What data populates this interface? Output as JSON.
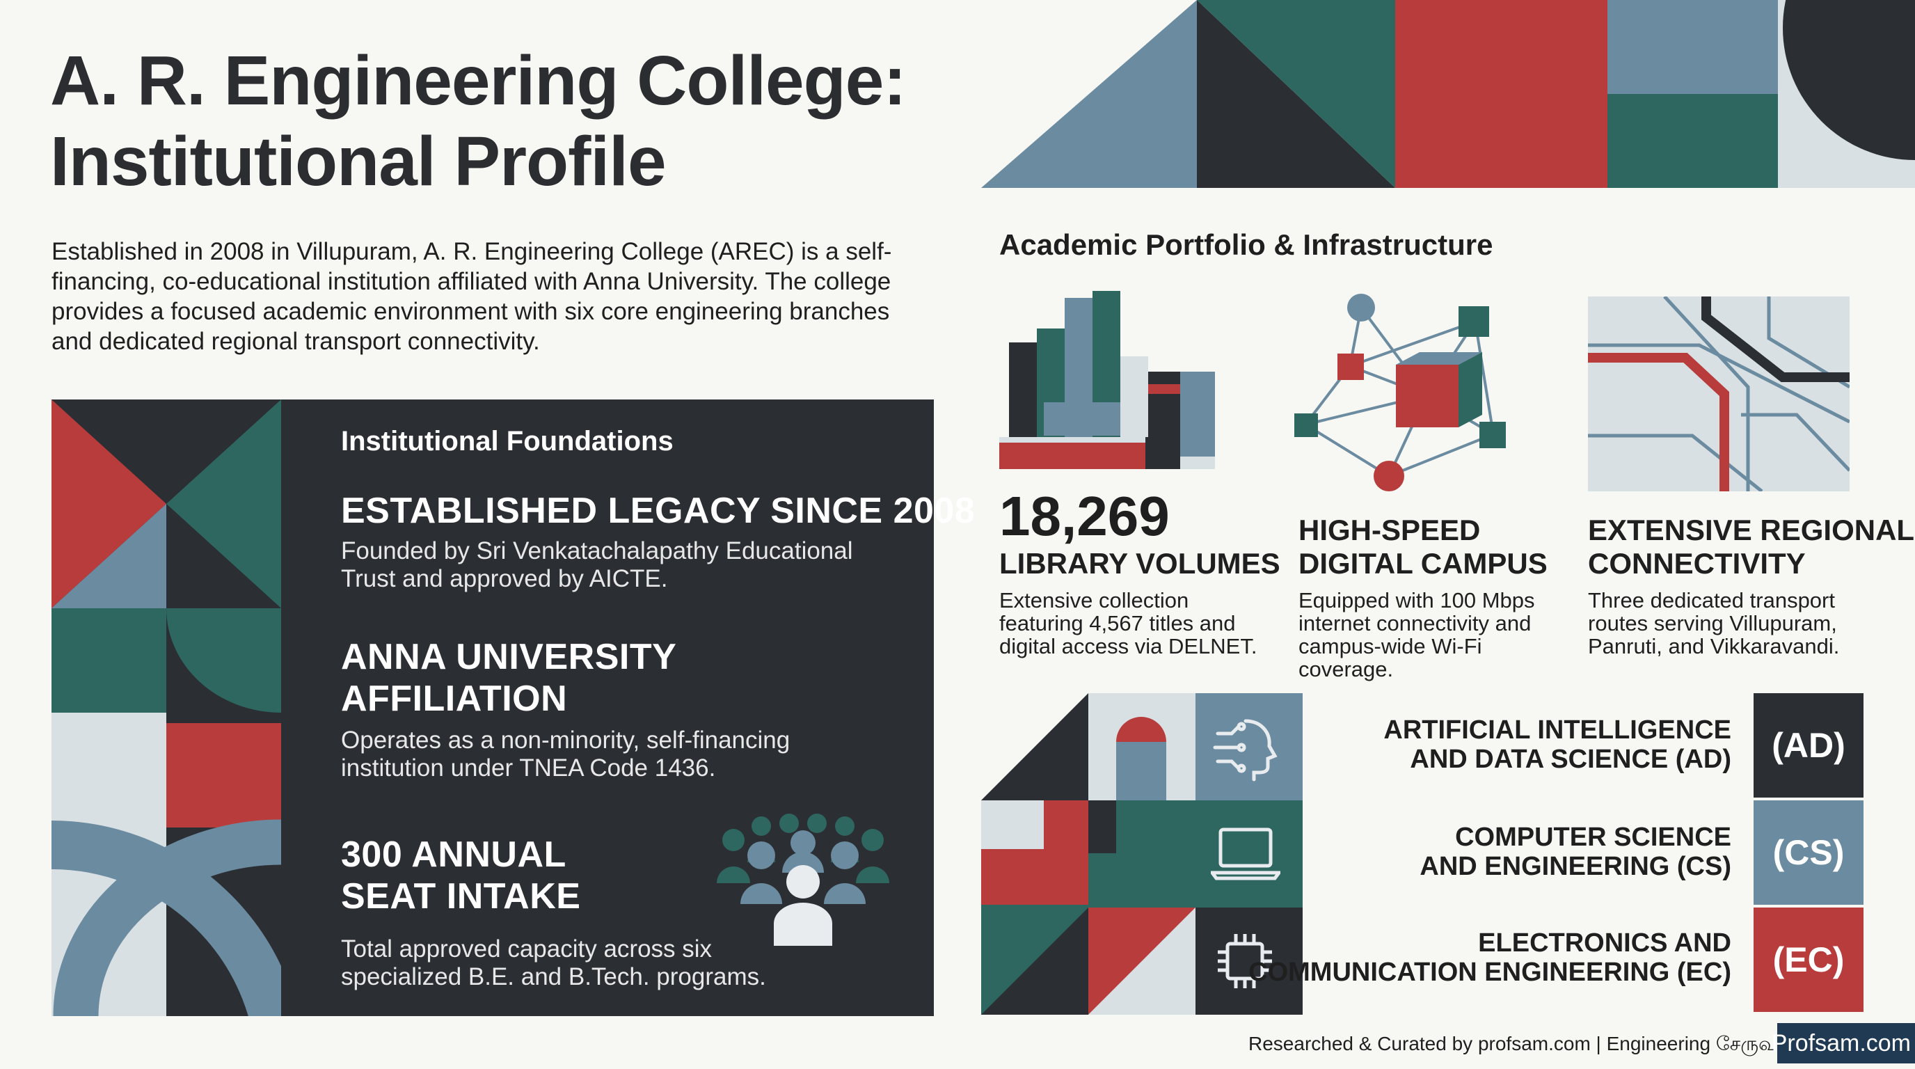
{
  "title_line1": "A. R. Engineering College:",
  "title_line2": "Institutional Profile",
  "intro": "Established in 2008 in Villupuram, A. R. Engineering College (AREC) is a self-financing, co-educational institution affiliated with Anna University. The college provides a focused academic environment with six core engineering branches and dedicated regional transport connectivity.",
  "foundations": {
    "heading": "Institutional Foundations",
    "items": [
      {
        "title": "ESTABLISHED LEGACY SINCE 2008",
        "text": "Founded by Sri Venkatachalapathy Educational Trust and approved by AICTE."
      },
      {
        "title_line1": "ANNA UNIVERSITY",
        "title_line2": "AFFILIATION",
        "text": "Operates as a non-minority, self-financing institution under TNEA Code 1436."
      },
      {
        "title_line1": "300 ANNUAL",
        "title_line2": "SEAT INTAKE",
        "text": "Total approved capacity across six specialized B.E. and B.Tech. programs."
      }
    ]
  },
  "academic": {
    "heading": "Academic Portfolio & Infrastructure",
    "stats": [
      {
        "big": "18,269",
        "title": "LIBRARY VOLUMES",
        "text": "Extensive collection featuring 4,567 titles and digital access via DELNET.",
        "icon": "books-icon"
      },
      {
        "title_line1": "HIGH-SPEED",
        "title_line2": "DIGITAL CAMPUS",
        "text": "Equipped with 100 Mbps internet connectivity and campus-wide Wi-Fi coverage.",
        "icon": "network-icon"
      },
      {
        "title_line1": "EXTENSIVE REGIONAL",
        "title_line2": "CONNECTIVITY",
        "text": "Three dedicated transport routes serving Villupuram, Panruti, and Vikkaravandi.",
        "icon": "route-map-icon"
      }
    ]
  },
  "programs": [
    {
      "line1": "ARTIFICIAL INTELLIGENCE",
      "line2": "AND DATA SCIENCE (AD)",
      "code": "(AD)",
      "color": "#2b2e33",
      "icon": "ai-head-icon"
    },
    {
      "line1": "COMPUTER SCIENCE",
      "line2": "AND ENGINEERING (CS)",
      "code": "(CS)",
      "color": "#6b8ba0",
      "icon": "laptop-icon"
    },
    {
      "line1": "ELECTRONICS AND",
      "line2": "COMMUNICATION ENGINEERING (EC)",
      "code": "(EC)",
      "color": "#b83c3c",
      "icon": "chip-icon"
    }
  ],
  "footer": "Researched & Curated by profsam.com | Engineering சேருவ",
  "logo": "Profsam.com",
  "colors": {
    "dark": "#2b2e33",
    "red": "#b83c3c",
    "teal": "#2e6660",
    "slate": "#6b8ba0",
    "pale": "#d9e0e4"
  }
}
